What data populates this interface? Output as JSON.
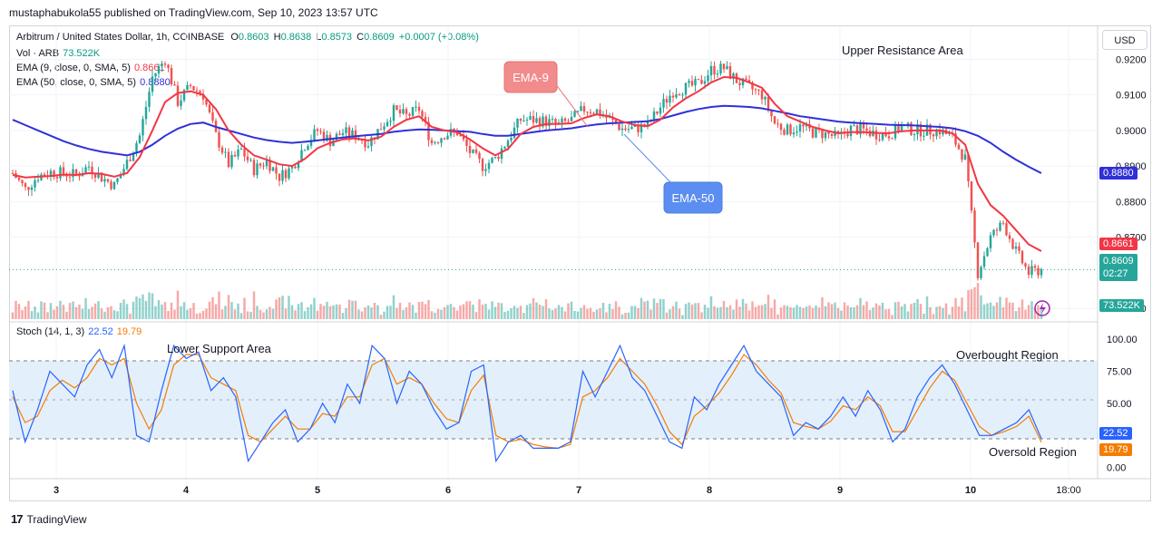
{
  "header": {
    "published_line": "mustaphabukola55 published on TradingView.com, Sep 10, 2023 13:57 UTC"
  },
  "symbol_line": {
    "name": "Arbitrum / United States Dollar, 1h, COINBASE",
    "o_label": "O",
    "o_value": "0.8603",
    "h_label": "H",
    "h_value": "0.8638",
    "l_label": "L",
    "l_value": "0.8573",
    "c_label": "C",
    "c_value": "0.8609",
    "change": "+0.0007 (+0.08%)"
  },
  "indicators": {
    "vol_label": "Vol · ARB",
    "vol_value": "73.522K",
    "ema9_label": "EMA (9, close, 0, SMA, 5)",
    "ema9_value": "0.8661",
    "ema50_label": "EMA (50, close, 0, SMA, 5)",
    "ema50_value": "0.8880",
    "stoch_label": "Stoch (14, 1, 3)",
    "stoch_k": "22.52",
    "stoch_d": "19.79"
  },
  "currency_button": "USD",
  "annotations": {
    "upper_resistance": "Upper Resistance Area",
    "lower_support": "Lower Support Area",
    "overbought": "Overbought Region",
    "oversold": "Oversold Region",
    "ema9_callout": "EMA-9",
    "ema50_callout": "EMA-50"
  },
  "price_tags": {
    "ema50": "0.8880",
    "ema9": "0.8661",
    "last_price": "0.8609",
    "countdown": "02:27",
    "volume": "73.522K",
    "stoch_k": "22.52",
    "stoch_d": "19.79"
  },
  "footer": {
    "brand": "TradingView"
  },
  "colors": {
    "up": "#26a69a",
    "down": "#ef5350",
    "ema9": "#f23645",
    "ema50": "#3030d8",
    "stoch_k": "#2962ff",
    "stoch_d": "#f57c00",
    "band": "#e3f0fb"
  },
  "chart_data": [
    {
      "type": "candlestick",
      "title": "Arbitrum / United States Dollar, 1h, COINBASE",
      "x_tick_labels": [
        "3",
        "4",
        "5",
        "6",
        "7",
        "8",
        "9",
        "10",
        "18:00"
      ],
      "y_tick_labels": [
        "0.9200",
        "0.9100",
        "0.9000",
        "0.8900",
        "0.8800",
        "0.8700",
        "0.8500"
      ],
      "ylim": [
        0.847,
        0.929
      ],
      "grid": true,
      "ohlc_close_path": [
        0.888,
        0.8835,
        0.8872,
        0.8883,
        0.888,
        0.8875,
        0.89,
        0.8868,
        0.8845,
        0.891,
        0.8985,
        0.915,
        0.92,
        0.908,
        0.9125,
        0.91,
        0.8985,
        0.8905,
        0.8945,
        0.889,
        0.8915,
        0.887,
        0.8895,
        0.896,
        0.9,
        0.897,
        0.8995,
        0.8985,
        0.8965,
        0.901,
        0.9055,
        0.904,
        0.906,
        0.8965,
        0.899,
        0.8995,
        0.894,
        0.89,
        0.892,
        0.8975,
        0.903,
        0.903,
        0.9025,
        0.9015,
        0.903,
        0.906,
        0.9055,
        0.903,
        0.9005,
        0.9005,
        0.9015,
        0.9065,
        0.911,
        0.912,
        0.913,
        0.917,
        0.9175,
        0.914,
        0.912,
        0.91,
        0.902,
        0.9,
        0.901,
        0.8995,
        0.899,
        0.898,
        0.9005,
        0.9,
        0.899,
        0.899,
        0.901,
        0.9,
        0.9,
        0.9,
        0.898,
        0.892,
        0.86,
        0.87,
        0.874,
        0.866,
        0.86,
        0.8609
      ],
      "volume_last": "73.522K",
      "series": [
        {
          "name": "EMA (9, close, 0, SMA, 5)",
          "last": 0.8661,
          "values": [
            0.8875,
            0.8868,
            0.887,
            0.8872,
            0.8876,
            0.8875,
            0.888,
            0.8878,
            0.887,
            0.888,
            0.8925,
            0.9,
            0.908,
            0.9105,
            0.911,
            0.91,
            0.906,
            0.9,
            0.896,
            0.893,
            0.8918,
            0.8905,
            0.89,
            0.892,
            0.895,
            0.8965,
            0.8975,
            0.8978,
            0.8972,
            0.8982,
            0.901,
            0.903,
            0.904,
            0.901,
            0.9,
            0.8995,
            0.8975,
            0.895,
            0.893,
            0.8948,
            0.899,
            0.901,
            0.9018,
            0.9018,
            0.902,
            0.9035,
            0.9045,
            0.904,
            0.9025,
            0.9015,
            0.9012,
            0.903,
            0.9065,
            0.909,
            0.911,
            0.9135,
            0.915,
            0.9148,
            0.9135,
            0.912,
            0.9075,
            0.904,
            0.9025,
            0.901,
            0.9,
            0.8992,
            0.8995,
            0.8995,
            0.8993,
            0.8992,
            0.8998,
            0.9,
            0.9,
            0.9,
            0.8992,
            0.896,
            0.885,
            0.879,
            0.876,
            0.872,
            0.868,
            0.8661
          ]
        },
        {
          "name": "EMA (50, close, 0, SMA, 5)",
          "last": 0.888,
          "values": [
            0.903,
            0.9015,
            0.9,
            0.8985,
            0.897,
            0.8958,
            0.8948,
            0.894,
            0.8935,
            0.893,
            0.894,
            0.896,
            0.8985,
            0.9005,
            0.9018,
            0.9022,
            0.901,
            0.9,
            0.899,
            0.898,
            0.8973,
            0.8968,
            0.8965,
            0.8968,
            0.8972,
            0.8976,
            0.898,
            0.8984,
            0.8987,
            0.899,
            0.8996,
            0.9,
            0.9003,
            0.9002,
            0.9,
            0.8998,
            0.8996,
            0.899,
            0.8985,
            0.8985,
            0.899,
            0.8995,
            0.9,
            0.9003,
            0.9006,
            0.9012,
            0.9017,
            0.902,
            0.9022,
            0.9024,
            0.9026,
            0.9032,
            0.9042,
            0.9052,
            0.906,
            0.9066,
            0.9069,
            0.9068,
            0.9066,
            0.9062,
            0.9055,
            0.9048,
            0.904,
            0.9035,
            0.903,
            0.9025,
            0.9022,
            0.902,
            0.9018,
            0.9016,
            0.9015,
            0.9014,
            0.9012,
            0.901,
            0.9006,
            0.8998,
            0.8985,
            0.8965,
            0.894,
            0.8918,
            0.8898,
            0.888
          ]
        }
      ]
    },
    {
      "type": "line",
      "title": "Stoch (14, 1, 3)",
      "x_tick_labels": [
        "3",
        "4",
        "5",
        "6",
        "7",
        "8",
        "9",
        "10",
        "18:00"
      ],
      "y_tick_labels": [
        "100.00",
        "75.00",
        "50.00",
        "25.00",
        "0.00"
      ],
      "ylim": [
        -8,
        110
      ],
      "bands": [
        20,
        80
      ],
      "series": [
        {
          "name": "%K",
          "last": 22.52,
          "values": [
            60,
            20,
            45,
            75,
            65,
            55,
            80,
            92,
            70,
            95,
            25,
            20,
            60,
            95,
            85,
            90,
            60,
            70,
            55,
            5,
            20,
            35,
            45,
            20,
            30,
            50,
            35,
            65,
            50,
            95,
            85,
            50,
            75,
            65,
            45,
            30,
            35,
            75,
            80,
            5,
            20,
            25,
            15,
            15,
            15,
            20,
            75,
            55,
            75,
            95,
            70,
            60,
            40,
            20,
            15,
            55,
            45,
            65,
            80,
            95,
            75,
            65,
            55,
            25,
            35,
            30,
            40,
            55,
            40,
            60,
            45,
            20,
            30,
            55,
            70,
            80,
            65,
            45,
            25,
            25,
            30,
            35,
            45,
            22.52
          ]
        },
        {
          "name": "%D",
          "last": 19.79,
          "values": [
            55,
            35,
            40,
            60,
            68,
            62,
            70,
            85,
            80,
            85,
            50,
            30,
            45,
            80,
            88,
            88,
            70,
            65,
            60,
            25,
            20,
            30,
            40,
            30,
            30,
            42,
            40,
            55,
            55,
            80,
            85,
            65,
            70,
            65,
            50,
            38,
            35,
            60,
            72,
            25,
            20,
            22,
            18,
            16,
            15,
            18,
            55,
            60,
            70,
            85,
            75,
            65,
            48,
            28,
            18,
            40,
            48,
            58,
            72,
            88,
            80,
            68,
            58,
            35,
            32,
            30,
            36,
            48,
            45,
            55,
            48,
            28,
            28,
            45,
            62,
            75,
            68,
            50,
            32,
            25,
            28,
            32,
            40,
            19.79
          ]
        }
      ]
    }
  ]
}
